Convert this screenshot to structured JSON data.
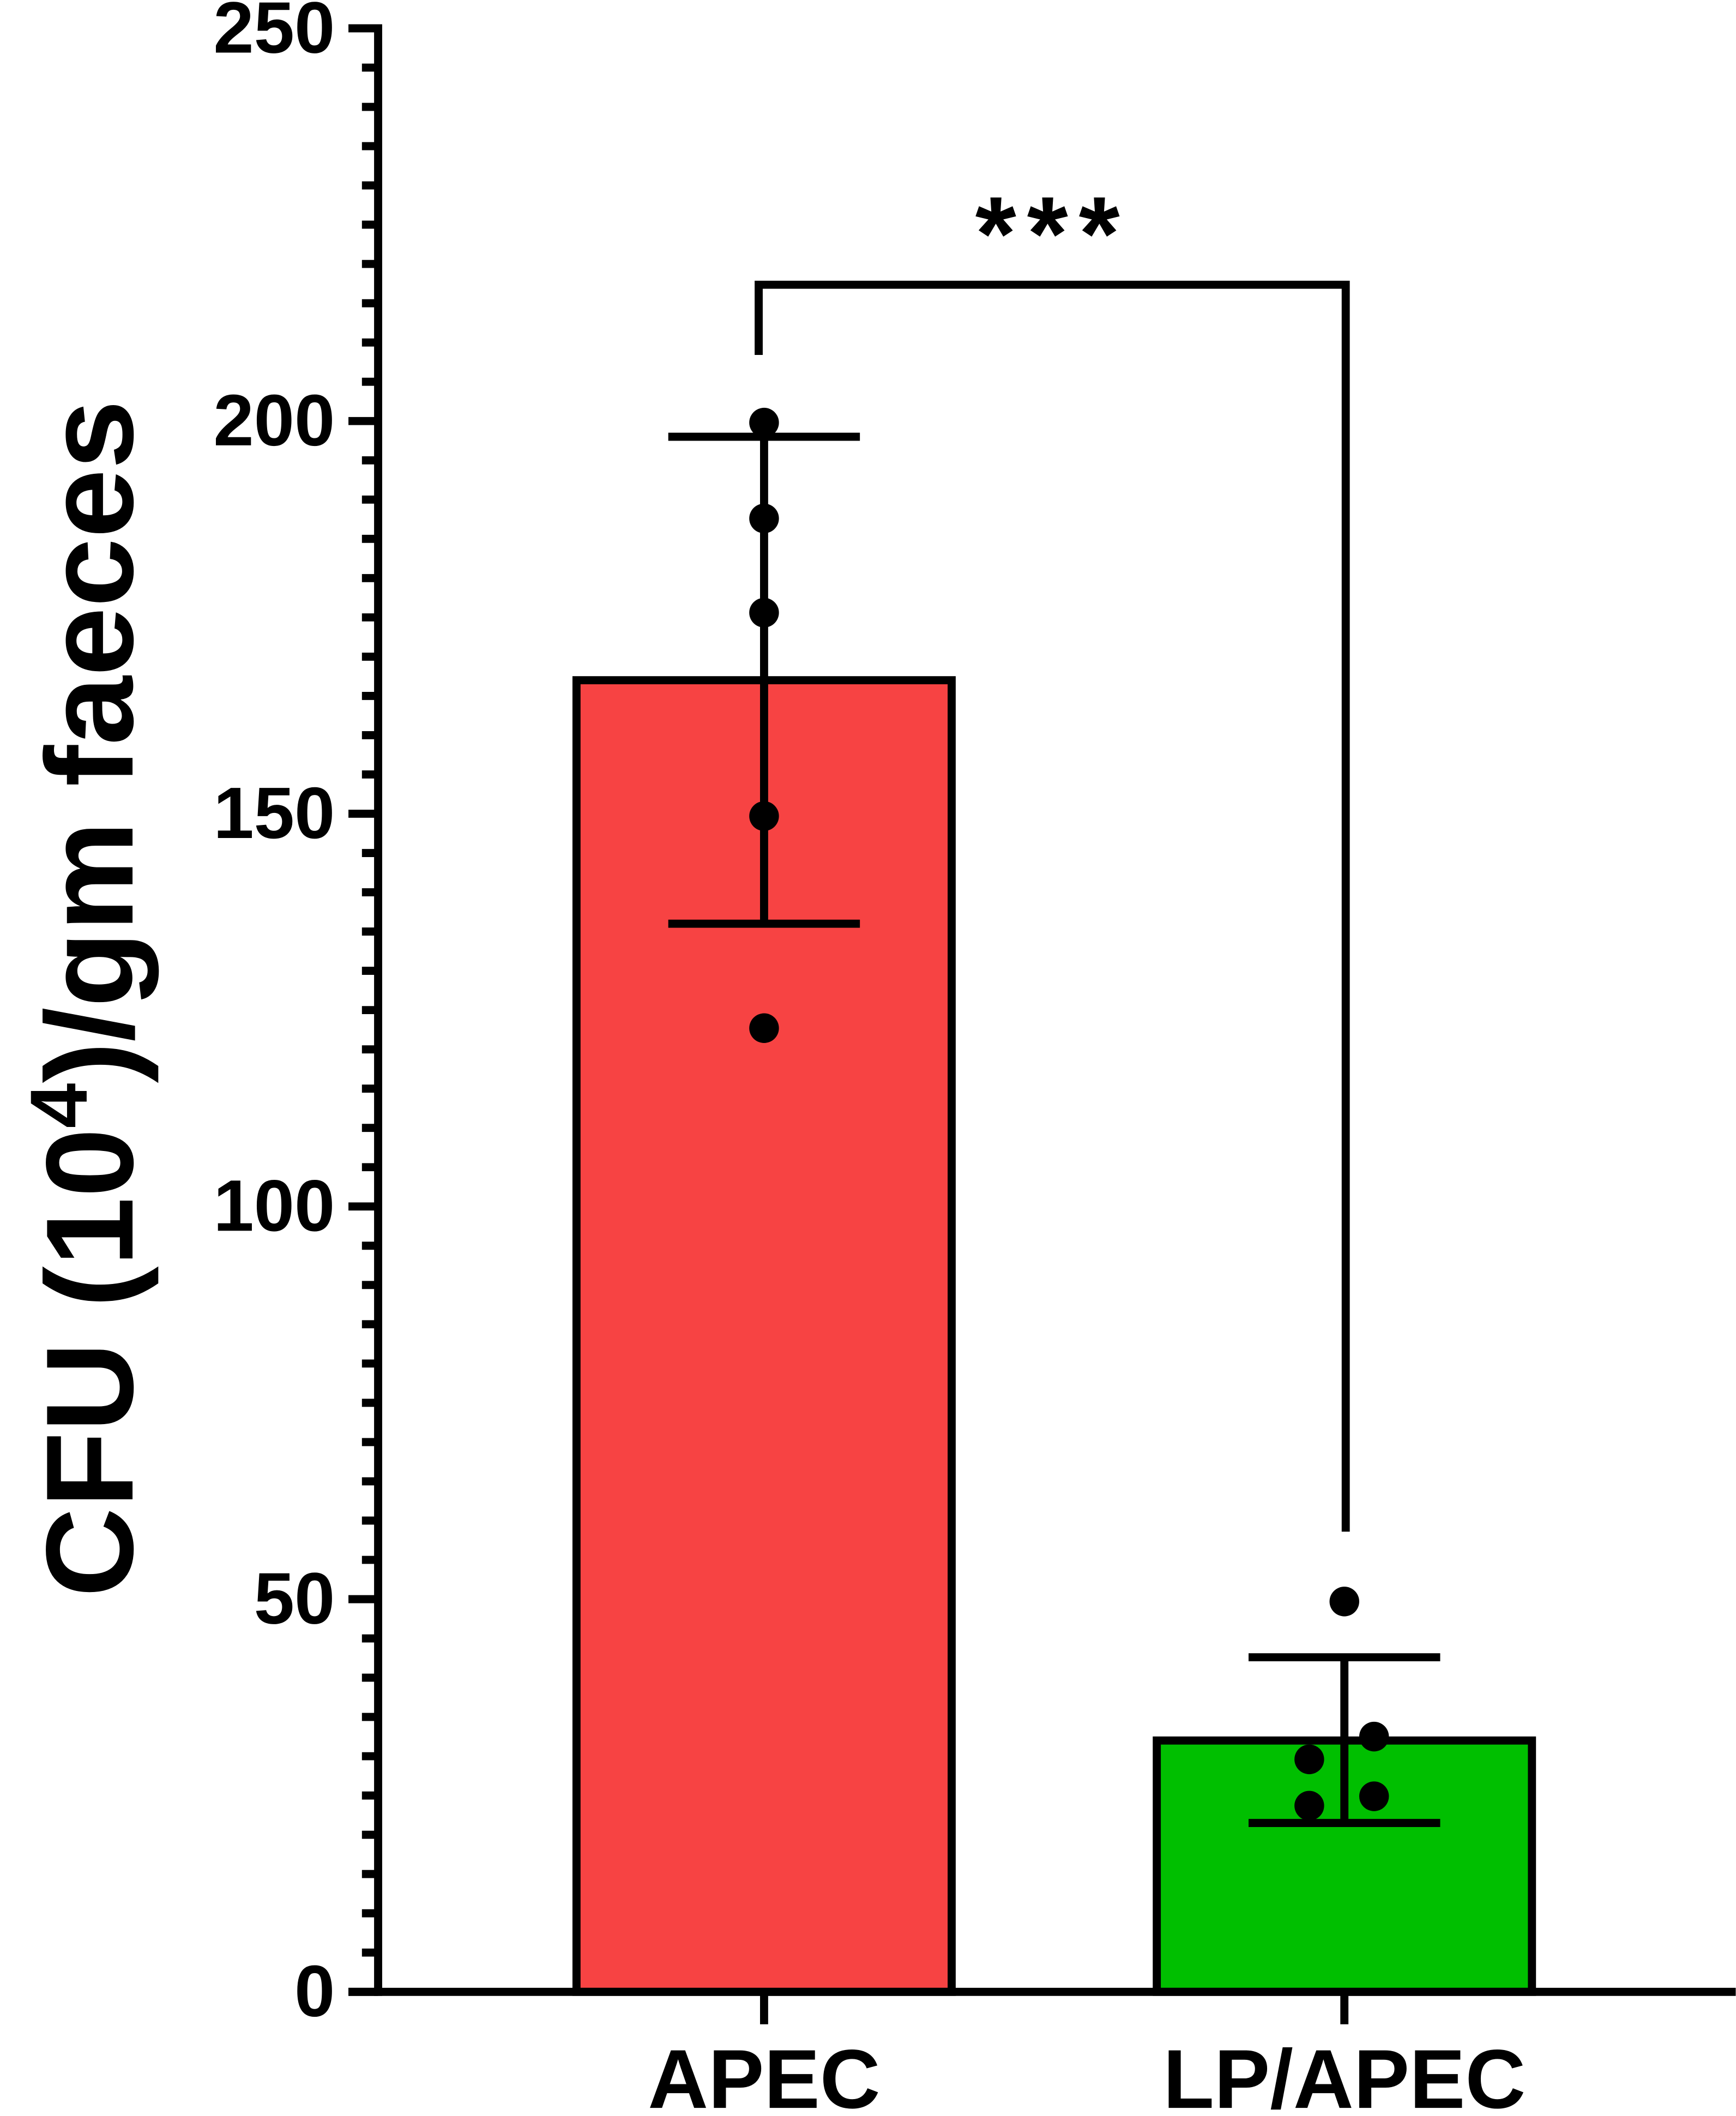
{
  "chart_data": {
    "type": "bar",
    "categories": [
      "APEC",
      "LP/APEC"
    ],
    "values": [
      167,
      32
    ],
    "error_bars": [
      {
        "upper": 198,
        "lower": 136
      },
      {
        "upper": 42.6,
        "lower": 21.5
      }
    ],
    "points": [
      [
        199.8,
        187.6,
        175.6,
        149.7,
        122.7
      ],
      [
        49.7,
        32.5,
        29.6,
        24.9,
        23.7
      ]
    ],
    "colors": [
      "#F74343",
      "#00BF00"
    ],
    "ylabel_main": "CFU (10",
    "ylabel_sup": "4",
    "ylabel_tail": ")/gm faeces",
    "ylim": [
      0,
      250
    ],
    "yticks": [
      "0",
      "50",
      "100",
      "150",
      "200",
      "250"
    ],
    "minor_tick_step": 5,
    "grid": false,
    "significance": {
      "label": "***",
      "between": [
        "APEC",
        "LP/APEC"
      ]
    }
  }
}
